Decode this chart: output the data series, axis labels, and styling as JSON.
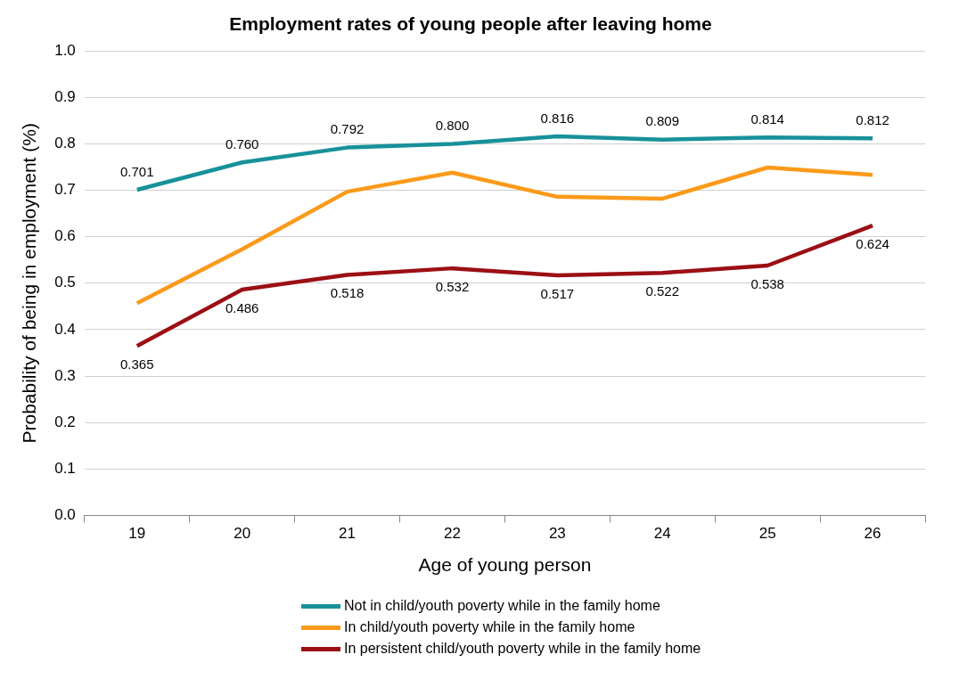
{
  "chart_data": {
    "type": "line",
    "title": "Employment rates of young people after leaving home",
    "xlabel": "Age of young person",
    "ylabel": "Probability of being in employment (%)",
    "categories": [
      "19",
      "20",
      "21",
      "22",
      "23",
      "24",
      "25",
      "26"
    ],
    "series": [
      {
        "name": "Not in child/youth poverty while in the family home",
        "color": "#17919a",
        "values": [
          0.701,
          0.76,
          0.792,
          0.8,
          0.816,
          0.809,
          0.814,
          0.812
        ],
        "value_labels": [
          "0.701",
          "0.760",
          "0.792",
          "0.800",
          "0.816",
          "0.809",
          "0.814",
          "0.812"
        ]
      },
      {
        "name": "In child/youth poverty while in the family home",
        "color": "#fb9a1a",
        "values": [
          0.457,
          0.573,
          0.697,
          0.738,
          0.686,
          0.682,
          0.749,
          0.733
        ]
      },
      {
        "name": "In persistent child/youth poverty while in the family home",
        "color": "#9b0f14",
        "values": [
          0.365,
          0.486,
          0.518,
          0.532,
          0.517,
          0.522,
          0.538,
          0.624
        ],
        "value_labels": [
          "0.365",
          "0.486",
          "0.518",
          "0.532",
          "0.517",
          "0.522",
          "0.538",
          "0.624"
        ]
      }
    ],
    "ylim": [
      0,
      1
    ],
    "yticks": [
      {
        "value": 0,
        "label": "0.0"
      },
      {
        "value": 0.1,
        "label": "0.1"
      },
      {
        "value": 0.2,
        "label": "0.2"
      },
      {
        "value": 0.3,
        "label": "0.3"
      },
      {
        "value": 0.4,
        "label": "0.4"
      },
      {
        "value": 0.5,
        "label": "0.5"
      },
      {
        "value": 0.6,
        "label": "0.6"
      },
      {
        "value": 0.7,
        "label": "0.7"
      },
      {
        "value": 0.8,
        "label": "0.8"
      },
      {
        "value": 0.9,
        "label": "0.9"
      },
      {
        "value": 1,
        "label": "1.0"
      }
    ],
    "grid": "y",
    "legend": "bottom",
    "marker": "none",
    "line_style": "solid"
  }
}
